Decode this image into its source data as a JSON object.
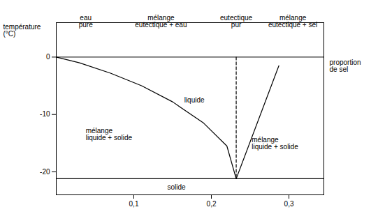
{
  "chart_data": {
    "type": "line",
    "x_label": "proportion\nde sel",
    "y_label": "température\n(°C)",
    "xlim": [
      0.0,
      0.345
    ],
    "ylim": [
      -24,
      6
    ],
    "xticks": [
      {
        "value": 0.1,
        "label": "0,1"
      },
      {
        "value": 0.2,
        "label": "0,2"
      },
      {
        "value": 0.3,
        "label": "0,3"
      }
    ],
    "yticks": [
      -10,
      -20,
      0
    ],
    "grid": false,
    "series": [
      {
        "x": [
          0.0,
          0.03,
          0.07,
          0.11,
          0.15,
          0.19,
          0.22,
          0.232
        ],
        "values": [
          0.0,
          -1.0,
          -2.8,
          -5.0,
          -7.8,
          -11.5,
          -15.5,
          -21.2
        ],
        "color": "#000000",
        "line_style": "solid"
      },
      {
        "x": [
          0.232,
          0.287
        ],
        "values": [
          -21.2,
          -1.5
        ],
        "color": "#000000",
        "line_style": "solid"
      },
      {
        "x": [
          0.0,
          0.345
        ],
        "values": [
          -21.2,
          -21.2
        ],
        "color": "#000000",
        "line_style": "solid"
      },
      {
        "x": [
          0.232,
          0.232
        ],
        "values": [
          0,
          -21.2
        ],
        "color": "#000000",
        "line_style": "dashed"
      }
    ],
    "annotations": [
      {
        "text": "liquide",
        "x": 0.165,
        "y": -7.5
      },
      {
        "text": "solide",
        "x": 0.155,
        "y": -22.7
      },
      {
        "text": "mélange\nliquide + solide",
        "x": 0.038,
        "y": -13.5
      },
      {
        "text": "mélange\nliquide + solide",
        "x": 0.252,
        "y": -15.0
      },
      {
        "text": "eau\npure",
        "x": 0.038,
        "y": 5.2
      },
      {
        "text": "mélange\neutectique + eau",
        "x": 0.135,
        "y": 5.2
      },
      {
        "text": "eutectique\npur",
        "x": 0.232,
        "y": 5.2
      },
      {
        "text": "mélange\neutectique + sel",
        "x": 0.305,
        "y": 5.2
      }
    ]
  }
}
